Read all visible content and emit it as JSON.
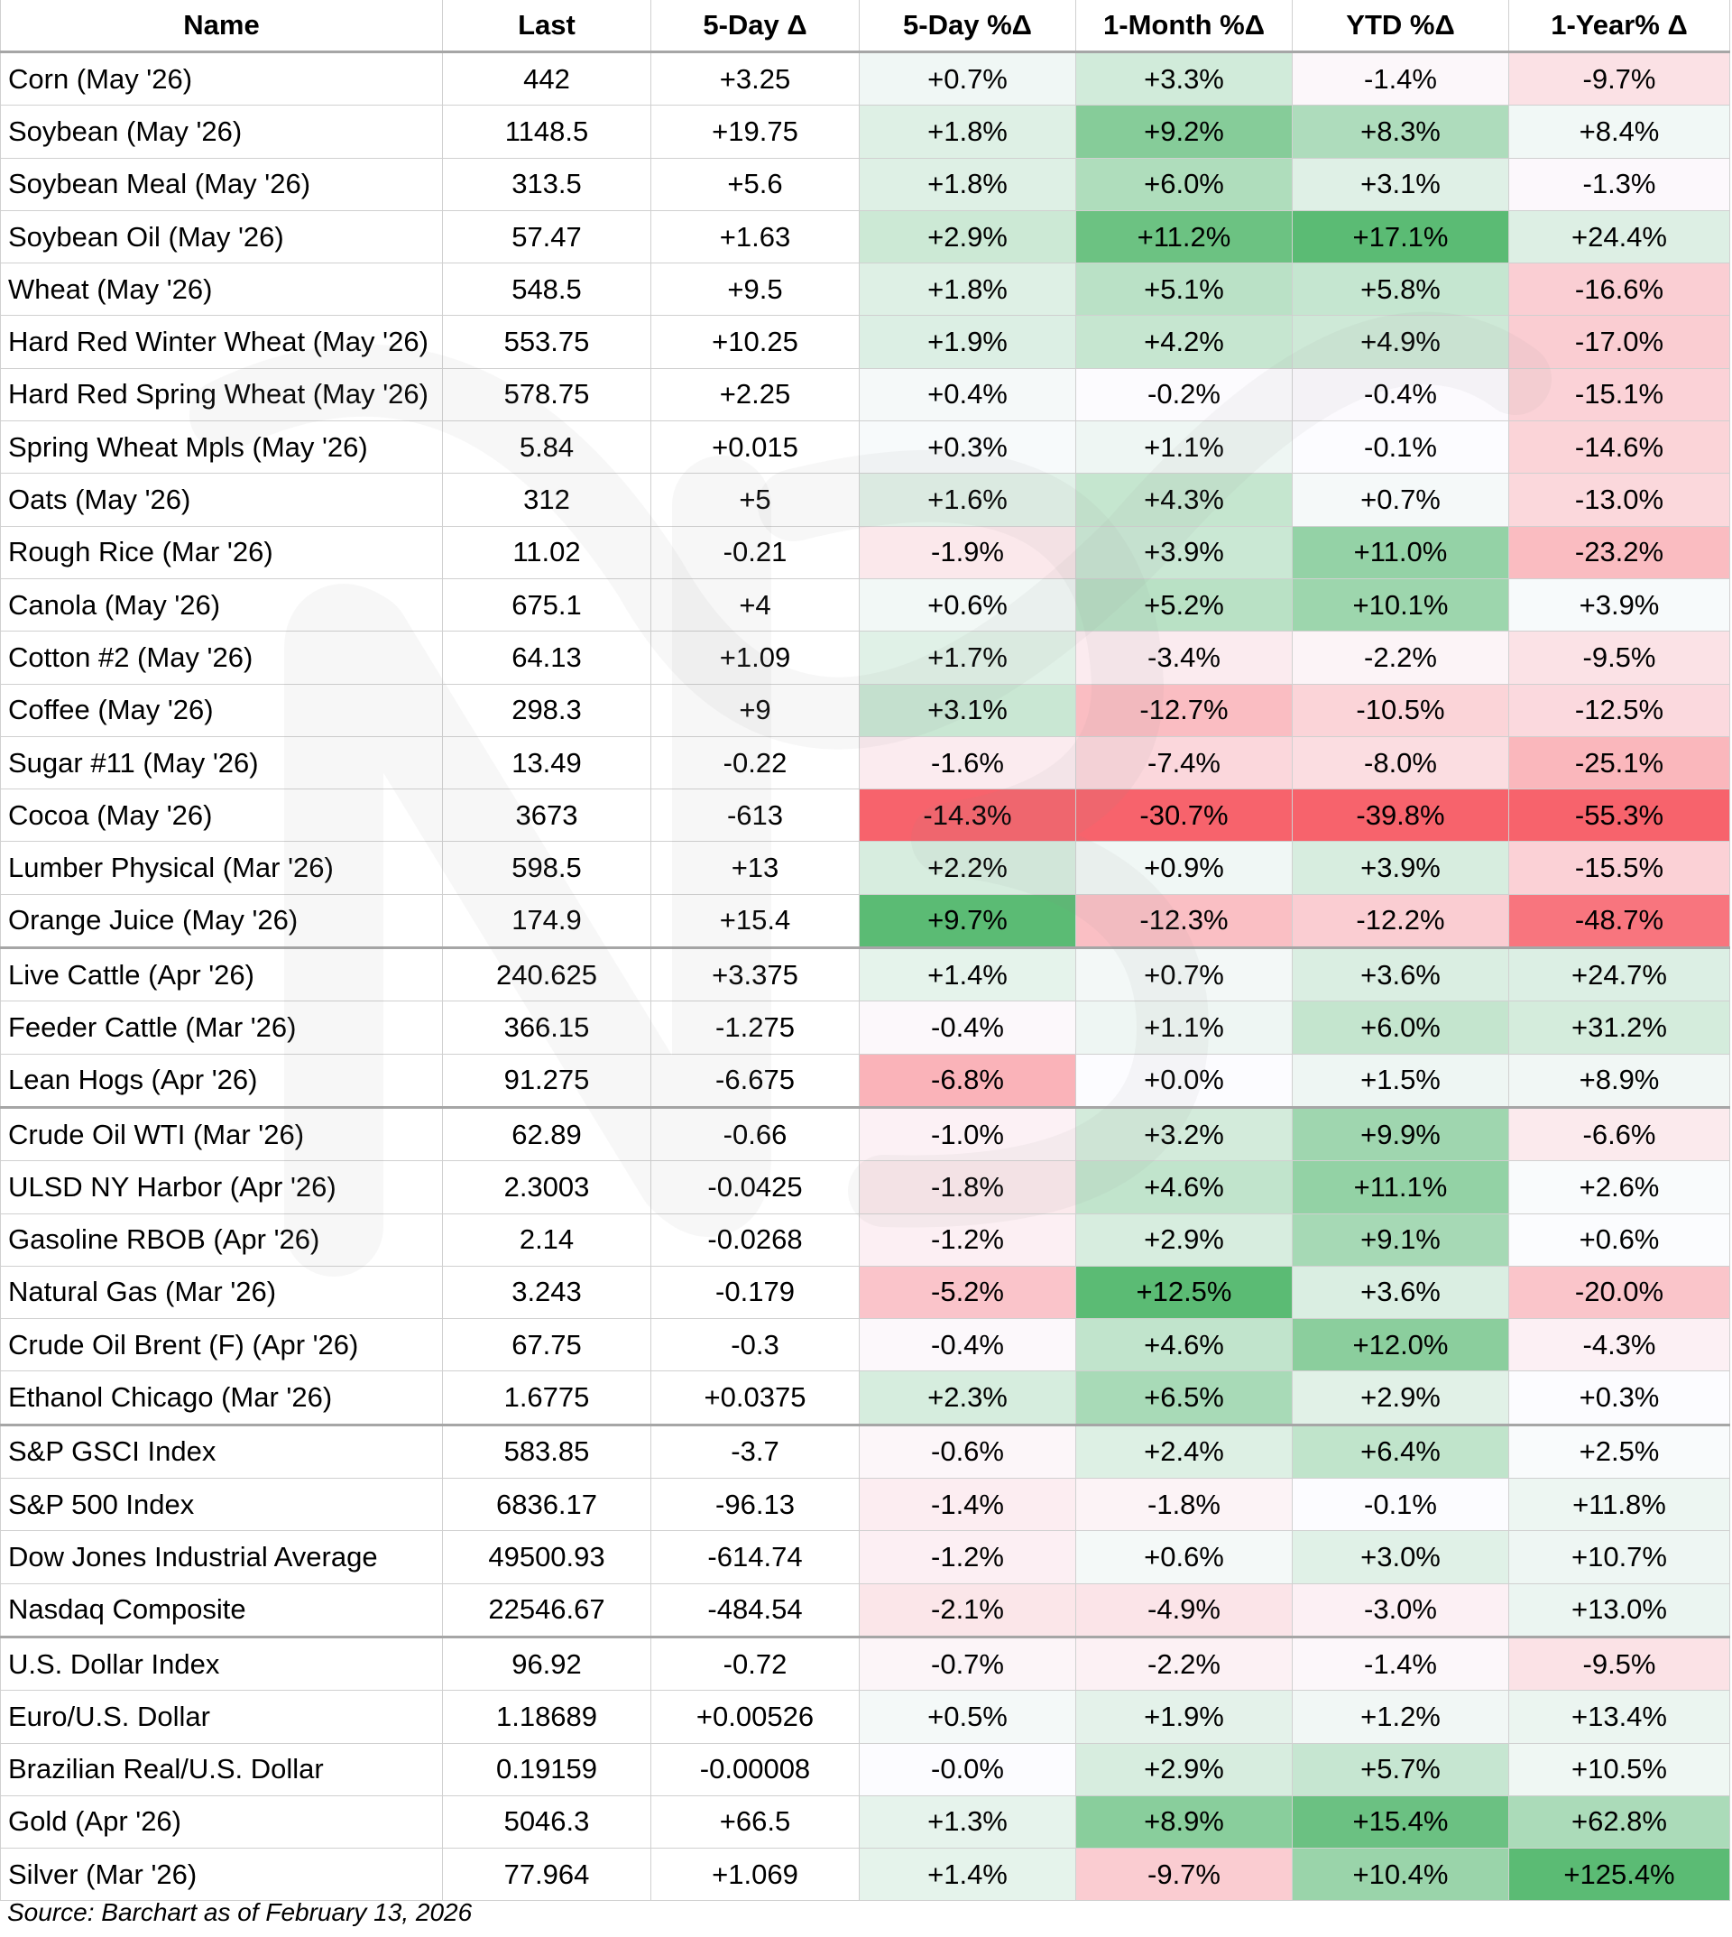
{
  "headers": [
    "Name",
    "Last",
    "5-Day Δ",
    "5-Day %Δ",
    "1-Month %Δ",
    "YTD %Δ",
    "1-Year% Δ"
  ],
  "rows": [
    [
      "Corn (May '26)",
      "442",
      "+3.25",
      "+0.7%",
      "+3.3%",
      "-1.4%",
      "-9.7%"
    ],
    [
      "Soybean (May '26)",
      "1148.5",
      "+19.75",
      "+1.8%",
      "+9.2%",
      "+8.3%",
      "+8.4%"
    ],
    [
      "Soybean Meal (May '26)",
      "313.5",
      "+5.6",
      "+1.8%",
      "+6.0%",
      "+3.1%",
      "-1.3%"
    ],
    [
      "Soybean Oil (May '26)",
      "57.47",
      "+1.63",
      "+2.9%",
      "+11.2%",
      "+17.1%",
      "+24.4%"
    ],
    [
      "Wheat (May '26)",
      "548.5",
      "+9.5",
      "+1.8%",
      "+5.1%",
      "+5.8%",
      "-16.6%"
    ],
    [
      "Hard Red Winter Wheat (May '26)",
      "553.75",
      "+10.25",
      "+1.9%",
      "+4.2%",
      "+4.9%",
      "-17.0%"
    ],
    [
      "Hard Red Spring Wheat (May '26)",
      "578.75",
      "+2.25",
      "+0.4%",
      "-0.2%",
      "-0.4%",
      "-15.1%"
    ],
    [
      "Spring Wheat Mpls (May '26)",
      "5.84",
      "+0.015",
      "+0.3%",
      "+1.1%",
      "-0.1%",
      "-14.6%"
    ],
    [
      "Oats (May '26)",
      "312",
      "+5",
      "+1.6%",
      "+4.3%",
      "+0.7%",
      "-13.0%"
    ],
    [
      "Rough Rice (Mar '26)",
      "11.02",
      "-0.21",
      "-1.9%",
      "+3.9%",
      "+11.0%",
      "-23.2%"
    ],
    [
      "Canola (May '26)",
      "675.1",
      "+4",
      "+0.6%",
      "+5.2%",
      "+10.1%",
      "+3.9%"
    ],
    [
      "Cotton #2 (May '26)",
      "64.13",
      "+1.09",
      "+1.7%",
      "-3.4%",
      "-2.2%",
      "-9.5%"
    ],
    [
      "Coffee (May '26)",
      "298.3",
      "+9",
      "+3.1%",
      "-12.7%",
      "-10.5%",
      "-12.5%"
    ],
    [
      "Sugar #11 (May '26)",
      "13.49",
      "-0.22",
      "-1.6%",
      "-7.4%",
      "-8.0%",
      "-25.1%"
    ],
    [
      "Cocoa (May '26)",
      "3673",
      "-613",
      "-14.3%",
      "-30.7%",
      "-39.8%",
      "-55.3%"
    ],
    [
      "Lumber Physical (Mar '26)",
      "598.5",
      "+13",
      "+2.2%",
      "+0.9%",
      "+3.9%",
      "-15.5%"
    ],
    [
      "Orange Juice (May '26)",
      "174.9",
      "+15.4",
      "+9.7%",
      "-12.3%",
      "-12.2%",
      "-48.7%"
    ],
    [
      "Live Cattle (Apr '26)",
      "240.625",
      "+3.375",
      "+1.4%",
      "+0.7%",
      "+3.6%",
      "+24.7%"
    ],
    [
      "Feeder Cattle (Mar '26)",
      "366.15",
      "-1.275",
      "-0.4%",
      "+1.1%",
      "+6.0%",
      "+31.2%"
    ],
    [
      "Lean Hogs (Apr '26)",
      "91.275",
      "-6.675",
      "-6.8%",
      "+0.0%",
      "+1.5%",
      "+8.9%"
    ],
    [
      "Crude Oil WTI (Mar '26)",
      "62.89",
      "-0.66",
      "-1.0%",
      "+3.2%",
      "+9.9%",
      "-6.6%"
    ],
    [
      "ULSD NY Harbor (Apr '26)",
      "2.3003",
      "-0.0425",
      "-1.8%",
      "+4.6%",
      "+11.1%",
      "+2.6%"
    ],
    [
      "Gasoline RBOB (Apr '26)",
      "2.14",
      "-0.0268",
      "-1.2%",
      "+2.9%",
      "+9.1%",
      "+0.6%"
    ],
    [
      "Natural Gas (Mar '26)",
      "3.243",
      "-0.179",
      "-5.2%",
      "+12.5%",
      "+3.6%",
      "-20.0%"
    ],
    [
      "Crude Oil Brent (F) (Apr '26)",
      "67.75",
      "-0.3",
      "-0.4%",
      "+4.6%",
      "+12.0%",
      "-4.3%"
    ],
    [
      "Ethanol Chicago (Mar '26)",
      "1.6775",
      "+0.0375",
      "+2.3%",
      "+6.5%",
      "+2.9%",
      "+0.3%"
    ],
    [
      "S&P GSCI Index",
      "583.85",
      "-3.7",
      "-0.6%",
      "+2.4%",
      "+6.4%",
      "+2.5%"
    ],
    [
      "S&P 500 Index",
      "6836.17",
      "-96.13",
      "-1.4%",
      "-1.8%",
      "-0.1%",
      "+11.8%"
    ],
    [
      "Dow Jones Industrial Average",
      "49500.93",
      "-614.74",
      "-1.2%",
      "+0.6%",
      "+3.0%",
      "+10.7%"
    ],
    [
      "Nasdaq Composite",
      "22546.67",
      "-484.54",
      "-2.1%",
      "-4.9%",
      "-3.0%",
      "+13.0%"
    ],
    [
      "U.S. Dollar Index",
      "96.92",
      "-0.72",
      "-0.7%",
      "-2.2%",
      "-1.4%",
      "-9.5%"
    ],
    [
      "Euro/U.S. Dollar",
      "1.18689",
      "+0.00526",
      "+0.5%",
      "+1.9%",
      "+1.2%",
      "+13.4%"
    ],
    [
      "Brazilian Real/U.S. Dollar",
      "0.19159",
      "-0.00008",
      "-0.0%",
      "+2.9%",
      "+5.7%",
      "+10.5%"
    ],
    [
      "Gold (Apr '26)",
      "5046.3",
      "+66.5",
      "+1.3%",
      "+8.9%",
      "+15.4%",
      "+62.8%"
    ],
    [
      "Silver (Mar '26)",
      "77.964",
      "+1.069",
      "+1.4%",
      "-9.7%",
      "+10.4%",
      "+125.4%"
    ]
  ],
  "group_end_rows": [
    16,
    19,
    25,
    29
  ],
  "colors": {
    "positive_max": "#5bbb74",
    "negative_max": "#f7636c",
    "neutral": "#fcfcff",
    "header_rule": "#a6a6a6",
    "grid": "#d0d0d0"
  },
  "source": "Source: Barchart as of February 13, 2026"
}
